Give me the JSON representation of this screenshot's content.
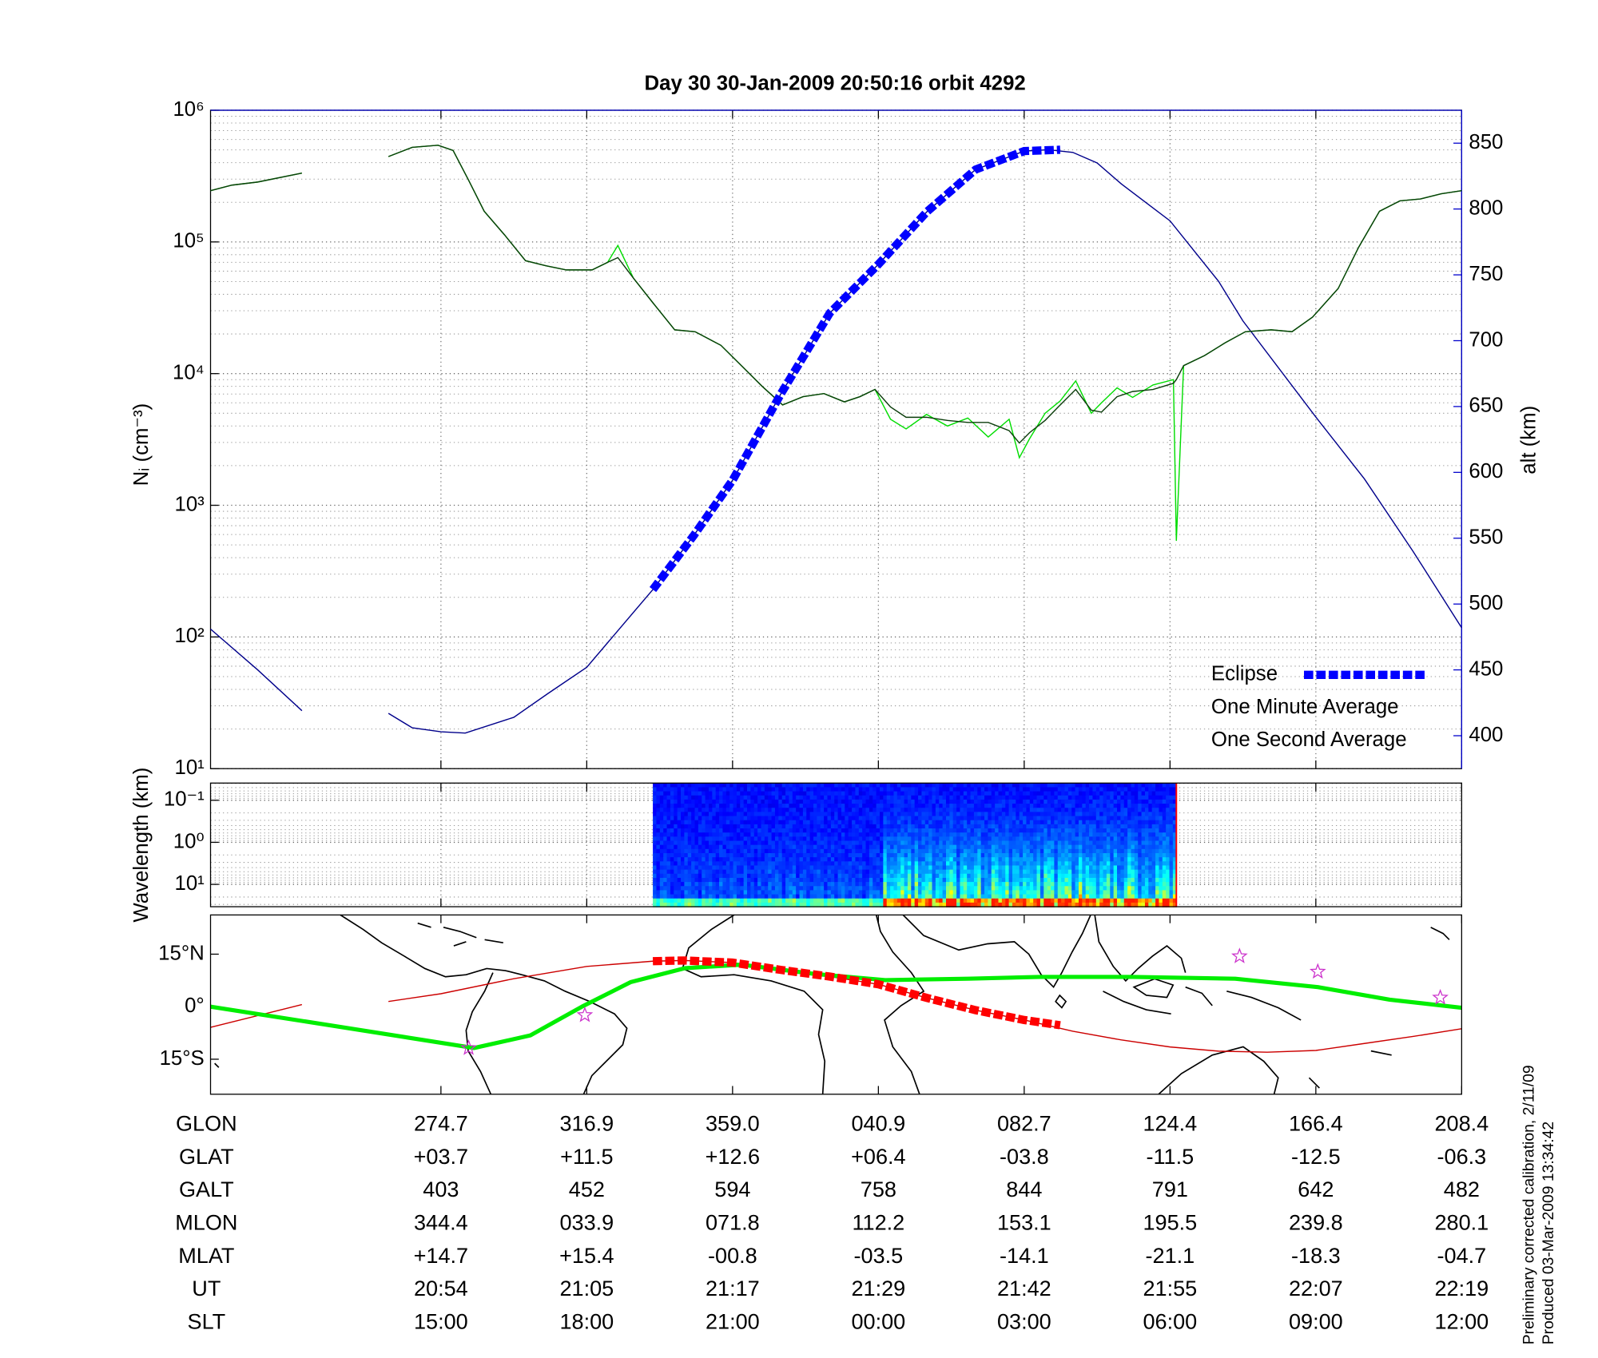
{
  "chart_data": [
    {
      "type": "line",
      "title": "Day 30  30-Jan-2009 20:50:16   orbit 4292",
      "ylabel": "Nᵢ (cm⁻³)",
      "y2label": "alt (km)",
      "xlim": [
        10.26,
        36
      ],
      "xticks": [
        15,
        18,
        21,
        24,
        27,
        30,
        33,
        36
      ],
      "ylog": true,
      "ylim": [
        10,
        1000000
      ],
      "yticks": [
        {
          "value": 10,
          "label": "10¹"
        },
        {
          "value": 100,
          "label": "10²"
        },
        {
          "value": 1000,
          "label": "10³"
        },
        {
          "value": 10000,
          "label": "10⁴"
        },
        {
          "value": 100000,
          "label": "10⁵"
        },
        {
          "value": 1000000,
          "label": "10⁶"
        }
      ],
      "y2lim": [
        375,
        875
      ],
      "y2ticks": [
        400,
        450,
        500,
        550,
        600,
        650,
        700,
        750,
        800,
        850
      ],
      "y2color": "#0000cc",
      "grid": true,
      "legend": "lower right",
      "x": [
        10.26,
        10.7,
        11.23,
        12.14,
        13.0,
        13.92,
        14.41,
        14.94,
        15.25,
        15.57,
        15.89,
        16.31,
        16.74,
        17.16,
        17.58,
        18.11,
        18.43,
        18.64,
        18.96,
        19.38,
        19.81,
        20.23,
        20.76,
        21.18,
        21.61,
        22.03,
        22.45,
        22.88,
        23.3,
        23.62,
        23.93,
        24.25,
        24.57,
        24.99,
        25.42,
        25.84,
        26.26,
        26.69,
        26.9,
        27.11,
        27.43,
        27.74,
        28.06,
        28.38,
        28.59,
        28.91,
        29.23,
        29.65,
        30.07,
        30.13,
        30.28,
        30.71,
        31.13,
        31.55,
        32.08,
        32.51,
        32.93,
        33.46,
        33.88,
        34.31,
        34.73,
        35.15,
        35.58,
        36
      ],
      "series": [
        {
          "name": "Eclipse",
          "color": "#0000ff",
          "axis": "y2",
          "style": "dashed-thick",
          "x": [
            19.36,
            20.2,
            21,
            22,
            23,
            24,
            25,
            26,
            27,
            27.74
          ],
          "values": [
            511,
            552,
            594,
            660,
            721,
            758,
            798,
            830,
            844,
            845
          ]
        },
        {
          "name": "One Minute Average",
          "color": "#000000",
          "line_color": "#0b3d0b",
          "values": [
            245000,
            270000,
            285000,
            333000,
            null,
            445000,
            523000,
            542000,
            495000,
            294000,
            171000,
            113000,
            72000,
            65900,
            61300,
            61300,
            70000,
            76000,
            53100,
            33800,
            21500,
            20800,
            16400,
            11500,
            8000,
            5780,
            6680,
            7050,
            6100,
            6680,
            7580,
            5580,
            4660,
            4660,
            4410,
            4260,
            4260,
            3690,
            2970,
            3560,
            4410,
            5780,
            7580,
            5280,
            5100,
            6680,
            7310,
            7580,
            8440,
            9000,
            11500,
            13700,
            17100,
            20800,
            21500,
            20800,
            26800,
            44300,
            91000,
            171000,
            205000,
            212000,
            232000,
            245000
          ]
        },
        {
          "name": "One Second Average",
          "color": "#00dd00",
          "values": [
            245000,
            270000,
            285000,
            333000,
            null,
            445000,
            523000,
            542000,
            495000,
            294000,
            171000,
            113000,
            72000,
            65900,
            61300,
            61300,
            70000,
            94000,
            53100,
            33800,
            21500,
            20800,
            16400,
            11500,
            8000,
            5780,
            6680,
            7050,
            6100,
            6680,
            7580,
            4500,
            3800,
            4900,
            4000,
            4600,
            3300,
            4500,
            2300,
            3200,
            5000,
            6200,
            8800,
            5000,
            6000,
            7800,
            6600,
            8200,
            9000,
            537,
            11500,
            13700,
            17100,
            20800,
            21500,
            20800,
            26800,
            44300,
            91000,
            171000,
            205000,
            212000,
            232000,
            245000
          ]
        },
        {
          "color": "#00008b",
          "axis": "y2",
          "x": [
            10.26,
            11.23,
            12.14,
            13.0,
            13.92,
            14.41,
            15,
            15.5,
            16.5,
            17.2,
            18,
            19.36,
            20.2,
            21,
            22,
            23,
            24,
            25,
            26,
            27,
            27.5,
            28,
            28.5,
            29,
            30,
            31,
            31.5,
            33,
            34,
            35,
            36
          ],
          "values": [
            481,
            450,
            419,
            null,
            417,
            406,
            403,
            402,
            414,
            432,
            452,
            511,
            552,
            594,
            660,
            721,
            758,
            798,
            830,
            844,
            845,
            843,
            835,
            819,
            791,
            745,
            715,
            642,
            595,
            540,
            482
          ]
        }
      ]
    },
    {
      "type": "spectrogram",
      "ylabel": "Wavelength (km)",
      "ylog": true,
      "y_reversed": true,
      "ylim": [
        0.039,
        34
      ],
      "yticks": [
        {
          "value": 0.1,
          "label": "10⁻¹"
        },
        {
          "value": 1,
          "label": "10⁰"
        },
        {
          "value": 10,
          "label": "10¹"
        }
      ],
      "xlim": [
        10.26,
        36
      ],
      "xticks": [
        15,
        18,
        21,
        24,
        27,
        30,
        33,
        36
      ],
      "grid": true,
      "data_x": [
        19.36,
        30.13
      ]
    },
    {
      "type": "map",
      "ylim": [
        -25,
        26.2
      ],
      "yticks": [
        {
          "value": 15,
          "label": "15°N"
        },
        {
          "value": 0,
          "label": "0°"
        },
        {
          "value": -15,
          "label": "15°S"
        }
      ],
      "xlim": [
        10.26,
        36
      ],
      "xticks": [
        15,
        18,
        21,
        24,
        27,
        30,
        33,
        36
      ],
      "series": [
        {
          "color": "#cc0000",
          "x": [
            10.26,
            12.14,
            13.0,
            13.92,
            15,
            16.5,
            18,
            19.36,
            20,
            21,
            22,
            23,
            24,
            25,
            26,
            27,
            28,
            29,
            30,
            31,
            32,
            33,
            34,
            35,
            36
          ],
          "values": [
            -5.9,
            0.6,
            null,
            1.5,
            3.7,
            8,
            11.5,
            13,
            13.2,
            12.6,
            10.5,
            8.6,
            6.4,
            2.5,
            -1,
            -3.8,
            -7,
            -9.5,
            -11.5,
            -12.7,
            -13,
            -12.5,
            -10.5,
            -8.5,
            -6.3
          ]
        },
        {
          "color": "#00ee00",
          "style": "thick",
          "x": [
            10.26,
            12.71,
            15.68,
            16.84,
            17.9,
            18.9,
            20.02,
            21.18,
            22.66,
            24.14,
            25.84,
            27.32,
            29.23,
            31.34,
            33.04,
            34.52,
            36
          ],
          "values": [
            0,
            -5.3,
            -11.8,
            -8.2,
            0,
            7,
            11,
            12,
            9.4,
            7.6,
            8,
            8.5,
            8.5,
            8,
            5.6,
            2,
            -0.3
          ]
        },
        {
          "color": "#ff0000",
          "style": "dashed-thick",
          "x": [
            19.36,
            20,
            21,
            22,
            23,
            24,
            25,
            26,
            27,
            27.74
          ],
          "values": [
            13,
            13.2,
            12.6,
            10.5,
            8.6,
            6.4,
            2.5,
            -1,
            -3.8,
            -5.3
          ]
        },
        {
          "color": "#cc33cc",
          "style": "star",
          "x": [
            15.57,
            17.96,
            31.43,
            33.04,
            35.56
          ],
          "values": [
            -11.8,
            -2.4,
            14.4,
            10,
            2.6
          ]
        }
      ]
    }
  ],
  "table": {
    "rows": [
      {
        "label": "GLON",
        "values": [
          "274.7",
          "316.9",
          "359.0",
          "040.9",
          "082.7",
          "124.4",
          "166.4",
          "208.4"
        ]
      },
      {
        "label": "GLAT",
        "values": [
          "+03.7",
          "+11.5",
          "+12.6",
          "+06.4",
          "-03.8",
          "-11.5",
          "-12.5",
          "-06.3"
        ]
      },
      {
        "label": "GALT",
        "values": [
          "403",
          "452",
          "594",
          "758",
          "844",
          "791",
          "642",
          "482"
        ]
      },
      {
        "label": "MLON",
        "values": [
          "344.4",
          "033.9",
          "071.8",
          "112.2",
          "153.1",
          "195.5",
          "239.8",
          "280.1"
        ]
      },
      {
        "label": "MLAT",
        "values": [
          "+14.7",
          "+15.4",
          "-00.8",
          "-03.5",
          "-14.1",
          "-21.1",
          "-18.3",
          "-04.7"
        ]
      },
      {
        "label": "UT",
        "values": [
          "20:54",
          "21:05",
          "21:17",
          "21:29",
          "21:42",
          "21:55",
          "22:07",
          "22:19"
        ]
      },
      {
        "label": "SLT",
        "values": [
          "15:00",
          "18:00",
          "21:00",
          "00:00",
          "03:00",
          "06:00",
          "09:00",
          "12:00"
        ]
      }
    ]
  },
  "notes": [
    "Preliminary corrected calibration, 2/11/09",
    "Produced 03-Mar-2009 13:34:42"
  ]
}
